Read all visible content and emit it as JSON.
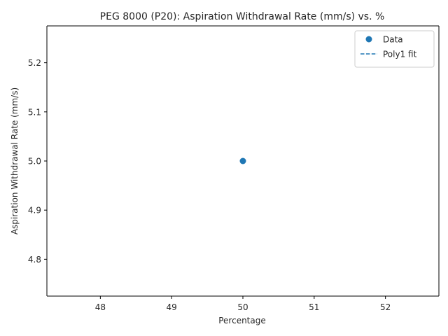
{
  "chart_data": {
    "type": "scatter",
    "title": "PEG 8000 (P20): Aspiration Withdrawal Rate (mm/s) vs. %",
    "xlabel": "Percentage",
    "ylabel": "Aspiration Withdrawal Rate (mm/s)",
    "xlim": [
      47.25,
      52.75
    ],
    "ylim": [
      4.725,
      5.275
    ],
    "xticks": [
      48,
      49,
      50,
      51,
      52
    ],
    "yticks": [
      4.8,
      4.9,
      5.0,
      5.1,
      5.2
    ],
    "xtick_labels": [
      "48",
      "49",
      "50",
      "51",
      "52"
    ],
    "ytick_labels": [
      "4.8",
      "4.9",
      "5.0",
      "5.1",
      "5.2"
    ],
    "grid": false,
    "legend_position": "top-right",
    "series": [
      {
        "name": "Data",
        "kind": "scatter",
        "color": "#1f77b4",
        "marker": "circle",
        "x": [
          50
        ],
        "y": [
          5.0
        ]
      },
      {
        "name": "Poly1 fit",
        "kind": "line",
        "color": "#1f77b4",
        "linestyle": "dashed",
        "x": [],
        "y": []
      }
    ]
  }
}
